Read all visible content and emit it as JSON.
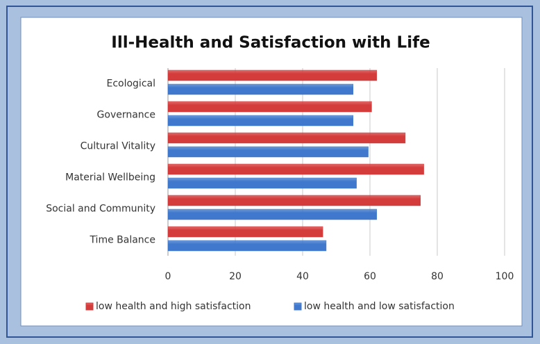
{
  "chart_data": {
    "type": "bar",
    "orientation": "horizontal",
    "title": "Ill-Health and Satisfaction with Life",
    "categories": [
      "Ecological",
      "Governance",
      "Cultural Vitality",
      "Material Wellbeing",
      "Social and Community",
      "Time Balance"
    ],
    "series": [
      {
        "name": "low health and high satisfaction",
        "color": "#d43b3b",
        "values": [
          62,
          60.5,
          70.5,
          76,
          75,
          46
        ]
      },
      {
        "name": "low health and low satisfaction",
        "color": "#3f78cc",
        "values": [
          55,
          55,
          59.5,
          56,
          62,
          47
        ]
      }
    ],
    "xlim": [
      0,
      100
    ],
    "xticks": [
      0,
      20,
      40,
      60,
      80,
      100
    ],
    "grid": true,
    "legend": "bottom"
  }
}
